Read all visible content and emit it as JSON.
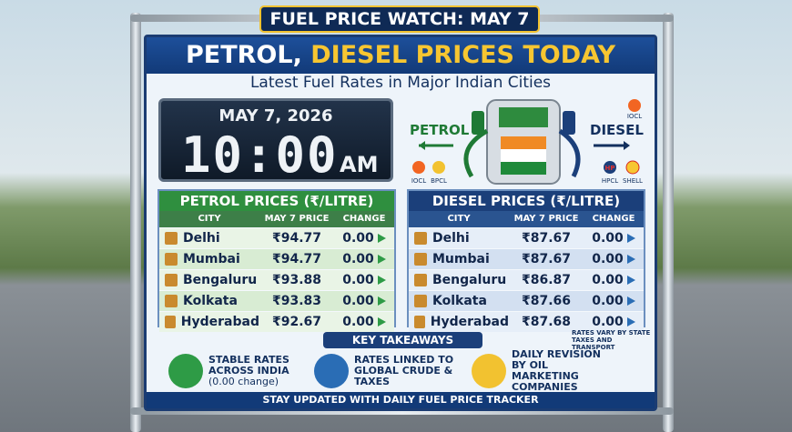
{
  "banner": "FUEL PRICE WATCH: MAY 7",
  "title": {
    "part1": "PETROL,",
    "part2": "DIESEL PRICES TODAY"
  },
  "subtitle": "Latest Fuel Rates in Major Indian Cities",
  "clock": {
    "date": "MAY 7, 2026",
    "time": "10:00",
    "meridiem": "AM"
  },
  "pump": {
    "petrol_label": "PETROL",
    "diesel_label": "DIESEL",
    "logo_top": "IOCL",
    "logos_left": [
      "IOCL",
      "BPCL"
    ],
    "hp_mark": "HP",
    "logos_right": [
      "HPCL",
      "SHELL"
    ]
  },
  "tables": [
    {
      "title": "PETROL PRICES (₹/LITRE)",
      "columns": [
        "CITY",
        "MAY 7 PRICE",
        "CHANGE"
      ],
      "rows": [
        [
          "Delhi",
          "₹94.77",
          "0.00"
        ],
        [
          "Mumbai",
          "₹94.77",
          "0.00"
        ],
        [
          "Bengaluru",
          "₹93.88",
          "0.00"
        ],
        [
          "Kolkata",
          "₹93.83",
          "0.00"
        ],
        [
          "Hyderabad",
          "₹92.67",
          "0.00"
        ]
      ]
    },
    {
      "title": "DIESEL PRICES (₹/LITRE)",
      "columns": [
        "CITY",
        "MAY 7 PRICE",
        "CHANGE"
      ],
      "rows": [
        [
          "Delhi",
          "₹87.67",
          "0.00"
        ],
        [
          "Mumbai",
          "₹87.67",
          "0.00"
        ],
        [
          "Bengaluru",
          "₹86.87",
          "0.00"
        ],
        [
          "Kolkata",
          "₹87.66",
          "0.00"
        ],
        [
          "Hyderabad",
          "₹87.68",
          "0.00"
        ]
      ]
    }
  ],
  "note": "RATES VARY BY STATE TAXES AND TRANSPORT",
  "takeaways": {
    "title": "KEY TAKEAWAYS",
    "items": [
      {
        "text": "STABLE RATES ACROSS INDIA",
        "subtext": "(0.00 change)"
      },
      {
        "text": "RATES LINKED TO GLOBAL CRUDE & TAXES"
      },
      {
        "text": "DAILY REVISION BY OIL MARKETING COMPANIES"
      }
    ]
  },
  "footer": "STAY UPDATED WITH DAILY FUEL PRICE TRACKER"
}
